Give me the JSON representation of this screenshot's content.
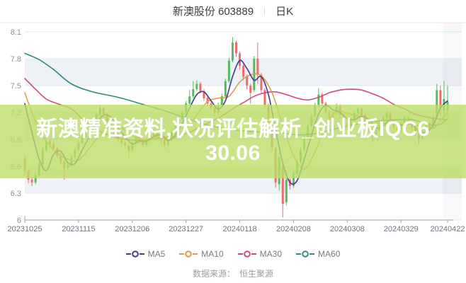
{
  "header": {
    "title": "新澳股份 603889",
    "divider": "|",
    "period": "日K"
  },
  "watermark": {
    "line1": "新澳精准资料,状况评估解析_创业板IQC6",
    "line2": "30.06"
  },
  "footer": {
    "source_label": "数据来源：",
    "source_value": "恒生聚源"
  },
  "chart_data": {
    "type": "candlestick",
    "title": "新澳股份 603889 日K",
    "ylim": [
      6.0,
      8.1
    ],
    "y_ticks": [
      8.1,
      7.8,
      7.5,
      7.2,
      6.9,
      6.6,
      6.3,
      6.0
    ],
    "y_tick_labels": [
      "8.1",
      "7.8",
      "7.5",
      "7.2",
      "6.9",
      "6.6",
      "6.3",
      "6"
    ],
    "x_tick_labels": [
      "20231025",
      "20231115",
      "20231206",
      "20231227",
      "20240118",
      "20240208",
      "20240308",
      "20240329",
      "20240422"
    ],
    "x_tick_days": [
      0,
      15,
      30,
      45,
      60,
      75,
      90,
      105,
      118
    ],
    "grid": true,
    "legend_position": "bottom",
    "colors": {
      "up": "#56bb5c",
      "down": "#ef6a6a",
      "stripe": "#eef1f6",
      "gridline": "#e4e8ef",
      "axis": "#9aa0a6",
      "tick_label": "#6f7680",
      "y_label": "#8a9097"
    },
    "candles": [
      [
        6.68,
        6.72,
        6.5,
        6.55
      ],
      [
        6.55,
        6.57,
        6.41,
        6.45
      ],
      [
        6.45,
        6.48,
        6.38,
        6.42
      ],
      [
        6.42,
        6.53,
        6.4,
        6.5
      ],
      [
        6.5,
        6.65,
        6.48,
        6.62
      ],
      [
        6.62,
        6.81,
        6.6,
        6.78
      ],
      [
        6.78,
        6.95,
        6.76,
        6.88
      ],
      [
        6.88,
        6.91,
        6.81,
        6.85
      ],
      [
        6.85,
        6.88,
        6.77,
        6.8
      ],
      [
        6.8,
        6.82,
        6.69,
        6.72
      ],
      [
        6.72,
        6.75,
        6.62,
        6.65
      ],
      [
        6.65,
        6.67,
        6.45,
        6.58
      ],
      [
        6.58,
        6.65,
        6.55,
        6.62
      ],
      [
        6.62,
        6.73,
        6.6,
        6.7
      ],
      [
        6.7,
        6.81,
        6.68,
        6.78
      ],
      [
        6.78,
        6.89,
        6.76,
        6.86
      ],
      [
        6.86,
        6.96,
        6.84,
        6.93
      ],
      [
        6.93,
        7.03,
        6.91,
        7.0
      ],
      [
        7.0,
        7.09,
        6.98,
        7.06
      ],
      [
        7.06,
        7.15,
        7.04,
        7.12
      ],
      [
        7.12,
        7.21,
        7.1,
        7.18
      ],
      [
        7.18,
        7.28,
        7.16,
        7.25
      ],
      [
        7.25,
        7.27,
        7.14,
        7.18
      ],
      [
        7.18,
        7.2,
        7.06,
        7.1
      ],
      [
        7.1,
        7.12,
        6.99,
        7.02
      ],
      [
        7.02,
        7.04,
        6.93,
        6.96
      ],
      [
        6.96,
        6.98,
        6.87,
        6.9
      ],
      [
        6.9,
        6.92,
        6.83,
        6.86
      ],
      [
        6.86,
        6.88,
        6.8,
        6.83
      ],
      [
        6.83,
        6.85,
        6.7,
        6.78
      ],
      [
        6.78,
        6.89,
        6.76,
        6.86
      ],
      [
        6.86,
        6.97,
        6.84,
        6.94
      ],
      [
        6.94,
        6.96,
        6.86,
        6.89
      ],
      [
        6.89,
        6.91,
        6.81,
        6.84
      ],
      [
        6.84,
        6.92,
        6.82,
        6.89
      ],
      [
        6.89,
        6.97,
        6.87,
        6.94
      ],
      [
        6.94,
        7.02,
        6.92,
        6.99
      ],
      [
        6.99,
        7.01,
        6.92,
        6.95
      ],
      [
        6.95,
        6.97,
        6.86,
        6.89
      ],
      [
        6.89,
        6.91,
        6.8,
        6.84
      ],
      [
        6.84,
        6.93,
        6.82,
        6.9
      ],
      [
        6.9,
        7.01,
        6.88,
        6.98
      ],
      [
        6.98,
        7.08,
        6.96,
        7.05
      ],
      [
        7.05,
        7.15,
        7.03,
        7.12
      ],
      [
        7.12,
        7.23,
        7.1,
        7.2
      ],
      [
        7.2,
        7.33,
        7.18,
        7.3
      ],
      [
        7.3,
        7.45,
        7.28,
        7.38
      ],
      [
        7.38,
        7.55,
        7.36,
        7.46
      ],
      [
        7.46,
        7.56,
        7.44,
        7.52
      ],
      [
        7.52,
        7.54,
        7.41,
        7.44
      ],
      [
        7.44,
        7.46,
        7.33,
        7.36
      ],
      [
        7.36,
        7.38,
        7.27,
        7.3
      ],
      [
        7.3,
        7.32,
        7.21,
        7.25
      ],
      [
        7.25,
        7.27,
        7.16,
        7.2
      ],
      [
        7.2,
        7.31,
        7.18,
        7.28
      ],
      [
        7.28,
        7.41,
        7.26,
        7.38
      ],
      [
        7.38,
        7.58,
        7.36,
        7.55
      ],
      [
        7.55,
        7.81,
        7.53,
        7.78
      ],
      [
        7.78,
        8.04,
        7.76,
        7.98
      ],
      [
        7.98,
        8.0,
        7.82,
        7.86
      ],
      [
        7.86,
        7.88,
        7.68,
        7.72
      ],
      [
        7.72,
        7.74,
        7.56,
        7.6
      ],
      [
        7.6,
        7.62,
        7.46,
        7.5
      ],
      [
        7.5,
        7.52,
        7.3,
        7.42
      ],
      [
        7.45,
        7.83,
        7.43,
        7.8
      ],
      [
        7.8,
        7.98,
        7.52,
        7.62
      ],
      [
        7.62,
        7.64,
        7.41,
        7.45
      ],
      [
        7.45,
        7.47,
        7.24,
        7.28
      ],
      [
        7.28,
        7.3,
        7.02,
        7.06
      ],
      [
        7.06,
        7.08,
        6.78,
        6.82
      ],
      [
        6.8,
        6.82,
        6.36,
        6.42
      ],
      [
        6.4,
        6.75,
        6.33,
        6.7
      ],
      [
        6.6,
        6.63,
        6.03,
        6.18
      ],
      [
        6.2,
        6.48,
        6.16,
        6.45
      ],
      [
        6.45,
        6.47,
        6.34,
        6.38
      ],
      [
        6.38,
        6.55,
        6.36,
        6.52
      ],
      [
        6.52,
        6.68,
        6.5,
        6.65
      ],
      [
        6.65,
        6.81,
        6.63,
        6.78
      ],
      [
        6.78,
        6.95,
        6.76,
        6.92
      ],
      [
        6.92,
        7.08,
        6.9,
        7.05
      ],
      [
        7.05,
        7.19,
        7.03,
        7.16
      ],
      [
        7.16,
        7.31,
        7.14,
        7.28
      ],
      [
        7.28,
        7.47,
        7.26,
        7.4
      ],
      [
        7.4,
        7.42,
        7.27,
        7.3
      ],
      [
        7.3,
        7.32,
        7.18,
        7.21
      ],
      [
        7.21,
        7.23,
        7.11,
        7.14
      ],
      [
        7.14,
        7.23,
        7.12,
        7.2
      ],
      [
        7.2,
        7.3,
        7.18,
        7.27
      ],
      [
        7.27,
        7.29,
        7.14,
        7.17
      ],
      [
        7.17,
        7.19,
        7.06,
        7.09
      ],
      [
        7.09,
        7.11,
        7.01,
        7.04
      ],
      [
        7.04,
        7.14,
        7.02,
        7.11
      ],
      [
        7.11,
        7.22,
        7.09,
        7.19
      ],
      [
        7.19,
        7.27,
        7.17,
        7.24
      ],
      [
        7.24,
        7.26,
        7.14,
        7.17
      ],
      [
        7.17,
        7.19,
        7.06,
        7.09
      ],
      [
        7.09,
        7.11,
        6.98,
        7.01
      ],
      [
        7.01,
        7.03,
        6.87,
        6.94
      ],
      [
        6.94,
        7.03,
        6.92,
        7.0
      ],
      [
        7.0,
        7.1,
        6.98,
        7.07
      ],
      [
        7.07,
        7.17,
        7.05,
        7.14
      ],
      [
        7.14,
        7.22,
        7.12,
        7.19
      ],
      [
        7.19,
        7.21,
        7.08,
        7.11
      ],
      [
        7.11,
        7.13,
        7.01,
        7.04
      ],
      [
        7.04,
        7.06,
        6.96,
        6.99
      ],
      [
        6.99,
        7.1,
        6.97,
        7.07
      ],
      [
        7.07,
        7.17,
        7.05,
        7.14
      ],
      [
        7.14,
        7.16,
        7.06,
        7.09
      ],
      [
        7.09,
        7.11,
        7.0,
        7.03
      ],
      [
        7.03,
        7.05,
        6.94,
        6.97
      ],
      [
        6.97,
        6.99,
        6.84,
        6.91
      ],
      [
        6.91,
        7.02,
        6.89,
        6.99
      ],
      [
        6.99,
        7.11,
        6.97,
        7.08
      ],
      [
        7.08,
        7.1,
        7.0,
        7.03
      ],
      [
        7.03,
        7.17,
        7.01,
        7.14
      ],
      [
        7.15,
        7.52,
        7.13,
        7.45
      ],
      [
        7.45,
        7.5,
        7.17,
        7.25
      ],
      [
        7.22,
        7.55,
        7.1,
        7.35
      ],
      [
        7.22,
        7.5,
        7.15,
        7.32
      ]
    ],
    "series": [
      {
        "name": "MA5",
        "color": "#3e3a97",
        "points": [
          [
            0,
            7.3
          ],
          [
            2,
            6.98
          ],
          [
            4,
            6.68
          ],
          [
            6,
            6.55
          ],
          [
            8,
            6.73
          ],
          [
            10,
            6.77
          ],
          [
            12,
            6.64
          ],
          [
            14,
            6.63
          ],
          [
            16,
            6.78
          ],
          [
            18,
            6.93
          ],
          [
            20,
            7.08
          ],
          [
            22,
            7.17
          ],
          [
            24,
            7.15
          ],
          [
            26,
            7.03
          ],
          [
            28,
            6.93
          ],
          [
            30,
            6.85
          ],
          [
            32,
            6.88
          ],
          [
            34,
            6.88
          ],
          [
            36,
            6.93
          ],
          [
            38,
            6.95
          ],
          [
            40,
            6.89
          ],
          [
            42,
            6.95
          ],
          [
            44,
            7.08
          ],
          [
            46,
            7.25
          ],
          [
            48,
            7.4
          ],
          [
            50,
            7.43
          ],
          [
            52,
            7.33
          ],
          [
            54,
            7.24
          ],
          [
            56,
            7.33
          ],
          [
            58,
            7.6
          ],
          [
            60,
            7.78
          ],
          [
            62,
            7.69
          ],
          [
            64,
            7.56
          ],
          [
            66,
            7.6
          ],
          [
            68,
            7.4
          ],
          [
            70,
            7.01
          ],
          [
            72,
            6.64
          ],
          [
            74,
            6.42
          ],
          [
            76,
            6.44
          ],
          [
            78,
            6.68
          ],
          [
            80,
            6.94
          ],
          [
            82,
            7.18
          ],
          [
            84,
            7.28
          ],
          [
            86,
            7.23
          ],
          [
            88,
            7.2
          ],
          [
            90,
            7.13
          ],
          [
            92,
            7.12
          ],
          [
            94,
            7.16
          ],
          [
            96,
            7.12
          ],
          [
            98,
            7.03
          ],
          [
            100,
            7.05
          ],
          [
            102,
            7.12
          ],
          [
            104,
            7.07
          ],
          [
            106,
            7.06
          ],
          [
            108,
            7.07
          ],
          [
            110,
            6.99
          ],
          [
            112,
            6.98
          ],
          [
            114,
            7.06
          ],
          [
            116,
            7.25
          ],
          [
            118,
            7.33
          ]
        ]
      },
      {
        "name": "MA10",
        "color": "#dd9d43",
        "points": [
          [
            0,
            7.42
          ],
          [
            3,
            7.1
          ],
          [
            6,
            6.88
          ],
          [
            9,
            6.75
          ],
          [
            12,
            6.68
          ],
          [
            15,
            6.67
          ],
          [
            18,
            6.8
          ],
          [
            21,
            6.95
          ],
          [
            24,
            7.05
          ],
          [
            27,
            7.03
          ],
          [
            30,
            6.94
          ],
          [
            33,
            6.9
          ],
          [
            36,
            6.91
          ],
          [
            39,
            6.93
          ],
          [
            42,
            6.92
          ],
          [
            45,
            7.01
          ],
          [
            48,
            7.17
          ],
          [
            51,
            7.32
          ],
          [
            54,
            7.36
          ],
          [
            57,
            7.38
          ],
          [
            60,
            7.54
          ],
          [
            63,
            7.62
          ],
          [
            66,
            7.61
          ],
          [
            69,
            7.42
          ],
          [
            72,
            7.06
          ],
          [
            75,
            6.72
          ],
          [
            78,
            6.57
          ],
          [
            81,
            6.76
          ],
          [
            84,
            7.05
          ],
          [
            87,
            7.21
          ],
          [
            90,
            7.19
          ],
          [
            93,
            7.16
          ],
          [
            96,
            7.13
          ],
          [
            99,
            7.08
          ],
          [
            102,
            7.08
          ],
          [
            105,
            7.07
          ],
          [
            108,
            7.08
          ],
          [
            111,
            7.03
          ],
          [
            114,
            7.02
          ],
          [
            116,
            7.11
          ],
          [
            118,
            7.2
          ]
        ]
      },
      {
        "name": "MA30",
        "color": "#d14a7d",
        "points": [
          [
            0,
            7.58
          ],
          [
            3,
            7.46
          ],
          [
            6,
            7.35
          ],
          [
            9,
            7.3
          ],
          [
            13,
            7.24
          ],
          [
            16,
            7.13
          ],
          [
            19,
            7.04
          ],
          [
            22,
            6.97
          ],
          [
            25,
            6.93
          ],
          [
            28,
            6.9
          ],
          [
            31,
            6.89
          ],
          [
            34,
            6.89
          ],
          [
            37,
            6.91
          ],
          [
            40,
            6.92
          ],
          [
            43,
            6.94
          ],
          [
            46,
            6.98
          ],
          [
            49,
            7.04
          ],
          [
            52,
            7.1
          ],
          [
            55,
            7.16
          ],
          [
            58,
            7.24
          ],
          [
            61,
            7.31
          ],
          [
            64,
            7.38
          ],
          [
            67,
            7.42
          ],
          [
            70,
            7.43
          ],
          [
            73,
            7.4
          ],
          [
            76,
            7.36
          ],
          [
            79,
            7.34
          ],
          [
            82,
            7.37
          ],
          [
            85,
            7.42
          ],
          [
            88,
            7.45
          ],
          [
            91,
            7.46
          ],
          [
            94,
            7.45
          ],
          [
            97,
            7.41
          ],
          [
            100,
            7.36
          ],
          [
            103,
            7.29
          ],
          [
            106,
            7.24
          ],
          [
            109,
            7.18
          ],
          [
            112,
            7.15
          ],
          [
            115,
            7.13
          ],
          [
            118,
            7.12
          ]
        ]
      },
      {
        "name": "MA60",
        "color": "#2d8b80",
        "points": [
          [
            0,
            7.86
          ],
          [
            4,
            7.79
          ],
          [
            8,
            7.68
          ],
          [
            13,
            7.52
          ],
          [
            19,
            7.43
          ],
          [
            26,
            7.37
          ],
          [
            33,
            7.29
          ],
          [
            39,
            7.22
          ],
          [
            44,
            7.15
          ],
          [
            50,
            7.07
          ],
          [
            56,
            7.02
          ],
          [
            62,
            6.99
          ],
          [
            68,
            6.98
          ],
          [
            72,
            6.97
          ],
          [
            76,
            6.95
          ],
          [
            80,
            6.96
          ],
          [
            84,
            6.99
          ],
          [
            88,
            7.03
          ],
          [
            94,
            7.08
          ],
          [
            100,
            7.11
          ],
          [
            105,
            7.12
          ],
          [
            108,
            7.12
          ],
          [
            111,
            7.09
          ],
          [
            114,
            7.06
          ],
          [
            116,
            7.07
          ],
          [
            118,
            7.13
          ]
        ]
      }
    ]
  }
}
